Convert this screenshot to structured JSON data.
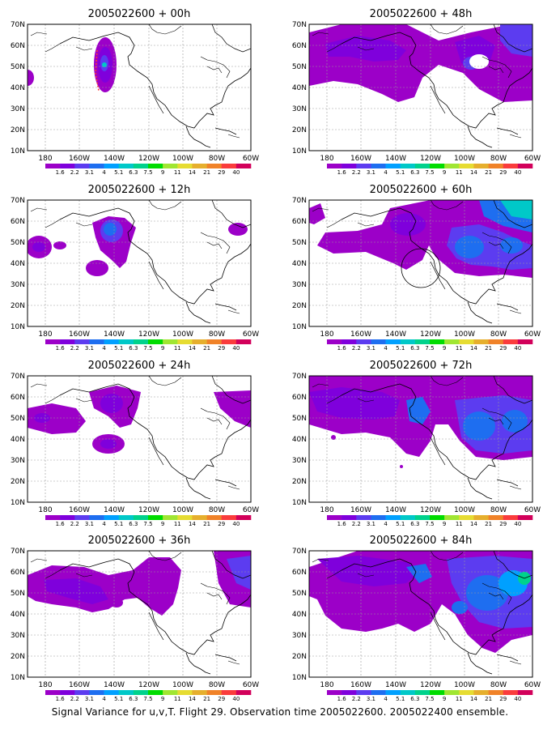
{
  "figure": {
    "caption": "Signal Variance for u,v,T. Flight 29. Observation time 2005022600. 2005022400 ensemble.",
    "map_axes": {
      "lat_labels": [
        "70N",
        "60N",
        "50N",
        "40N",
        "30N",
        "20N",
        "10N"
      ],
      "lon_labels": [
        "180",
        "160W",
        "140W",
        "120W",
        "100W",
        "80W",
        "60W"
      ]
    },
    "colorbar": {
      "labels": [
        "1.6",
        "2.2",
        "3.1",
        "4",
        "5.1",
        "6.3",
        "7.5",
        "9",
        "11",
        "14",
        "21",
        "29",
        "40"
      ],
      "colors": [
        "#9c00c8",
        "#7f00dc",
        "#5c3cf0",
        "#1e6ef0",
        "#00a0ff",
        "#00c8c8",
        "#00d28c",
        "#00dc00",
        "#a0e632",
        "#e6dc32",
        "#e6af2d",
        "#f08228",
        "#fa3c3c",
        "#d2005a"
      ]
    },
    "panels": [
      {
        "title": "2005022600 + 00h",
        "lead_hours": 0
      },
      {
        "title": "2005022600 + 48h",
        "lead_hours": 48
      },
      {
        "title": "2005022600 + 12h",
        "lead_hours": 12
      },
      {
        "title": "2005022600 + 60h",
        "lead_hours": 60
      },
      {
        "title": "2005022600 + 24h",
        "lead_hours": 24
      },
      {
        "title": "2005022600 + 72h",
        "lead_hours": 72
      },
      {
        "title": "2005022600 + 36h",
        "lead_hours": 36
      },
      {
        "title": "2005022600 + 84h",
        "lead_hours": 84
      }
    ]
  }
}
